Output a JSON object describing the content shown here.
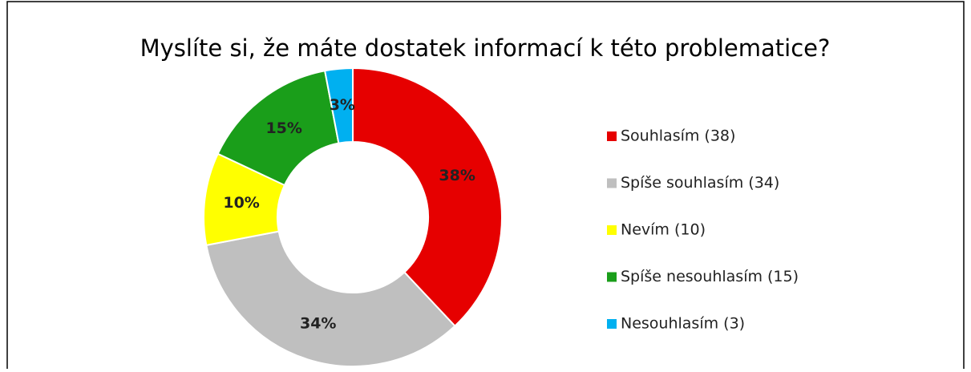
{
  "chart_data": {
    "type": "donut",
    "title": "Myslíte si, že máte dostatek informací k této problematice?",
    "categories": [
      "Souhlasím (38)",
      "Spíše souhlasím (34)",
      "Nevím (10)",
      "Spíše nesouhlasím (15)",
      "Nesouhlasím (3)"
    ],
    "values": [
      38,
      34,
      10,
      15,
      3
    ],
    "value_labels": [
      "38%",
      "34%",
      "10%",
      "15%",
      "3%"
    ],
    "colors": [
      "#e60000",
      "#bfbfbf",
      "#ffff00",
      "#1a9e1a",
      "#00b0f0"
    ],
    "legend": "right"
  }
}
